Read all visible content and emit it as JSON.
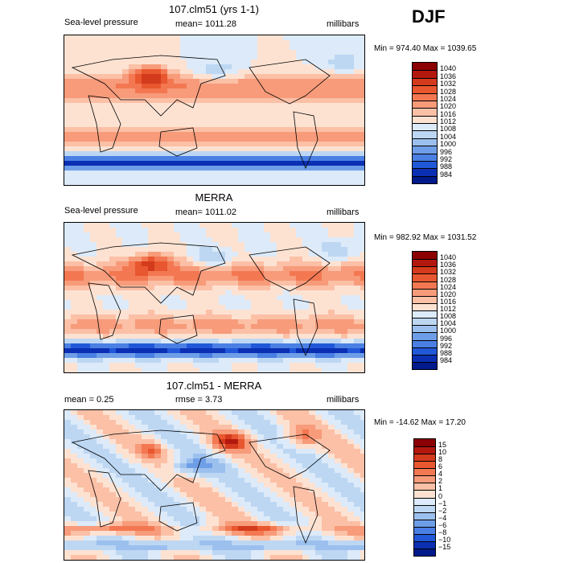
{
  "season": "DJF",
  "panels": [
    {
      "title": "107.clm51 (yrs 1-1)",
      "left_text": "Sea-level pressure",
      "mid_text": "mean= 1011.28",
      "right_text": "millibars",
      "minmax": "Min = 974.40 Max = 1039.65",
      "colorbar": [
        "1040",
        "1036",
        "1032",
        "1028",
        "1024",
        "1020",
        "1016",
        "1012",
        "1008",
        "1004",
        "1000",
        "996",
        "992",
        "988",
        "984"
      ],
      "colors": [
        "#8b0000",
        "#b3180f",
        "#d43a1c",
        "#e8572f",
        "#f37852",
        "#f79b7a",
        "#fbc0a6",
        "#fde2d2",
        "#dceaf9",
        "#bdd7f3",
        "#9cc0ee",
        "#6f9ee8",
        "#4a7fe3",
        "#2158d8",
        "#0a2fb3",
        "#001a8c"
      ],
      "kind": "slp"
    },
    {
      "title": "MERRA",
      "left_text": "Sea-level pressure",
      "mid_text": "mean= 1011.02",
      "right_text": "millibars",
      "minmax": "Min = 982.92 Max = 1031.52",
      "colorbar": [
        "1040",
        "1036",
        "1032",
        "1028",
        "1024",
        "1020",
        "1016",
        "1012",
        "1008",
        "1004",
        "1000",
        "996",
        "992",
        "988",
        "984"
      ],
      "colors": [
        "#8b0000",
        "#b3180f",
        "#d43a1c",
        "#e8572f",
        "#f37852",
        "#f79b7a",
        "#fbc0a6",
        "#fde2d2",
        "#dceaf9",
        "#bdd7f3",
        "#9cc0ee",
        "#6f9ee8",
        "#4a7fe3",
        "#2158d8",
        "#0a2fb3",
        "#001a8c"
      ],
      "kind": "slp2"
    },
    {
      "title": "107.clm51 - MERRA",
      "left_text": "mean =    0.25",
      "mid_text": "rmse =    3.73",
      "right_text": "millibars",
      "minmax": "Min = -14.62 Max =  17.20",
      "colorbar": [
        "15",
        "10",
        "8",
        "6",
        "4",
        "2",
        "1",
        "0",
        "−1",
        "−2",
        "−4",
        "−6",
        "−8",
        "−10",
        "−15"
      ],
      "colors": [
        "#8b0000",
        "#b3180f",
        "#d43a1c",
        "#e8572f",
        "#f37852",
        "#f79b7a",
        "#fbc0a6",
        "#fde2d2",
        "#dceaf9",
        "#bdd7f3",
        "#9cc0ee",
        "#6f9ee8",
        "#4a7fe3",
        "#2158d8",
        "#0a2fb3",
        "#001a8c"
      ],
      "kind": "diff"
    }
  ]
}
